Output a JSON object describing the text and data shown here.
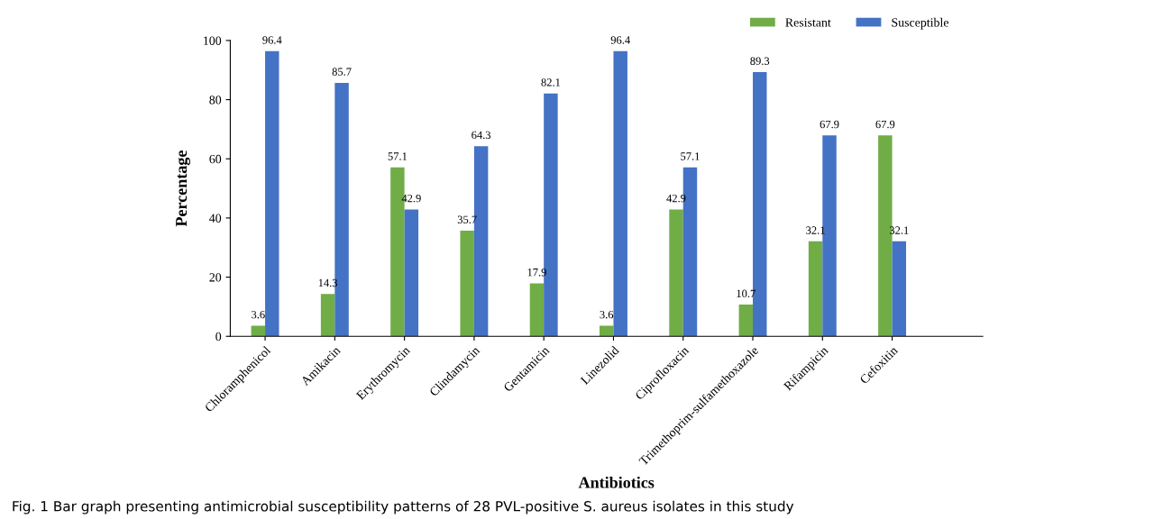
{
  "chart_data": {
    "type": "bar",
    "xlabel": "Antibiotics",
    "ylabel": "Percentage",
    "categories": [
      "Chloramphenicol",
      "Amikacin",
      "Erythromycin",
      "Clindamycin",
      "Gentamicin",
      "Linezolid",
      "Ciprofloxacin",
      "Trimethoprim-sulfamethoxazole",
      "Rifampicin",
      "Cefoxitin"
    ],
    "series": [
      {
        "name": "Resistant",
        "color": "#70ad47",
        "values": [
          3.6,
          14.3,
          57.1,
          35.7,
          17.9,
          3.6,
          42.9,
          10.7,
          32.1,
          67.9
        ]
      },
      {
        "name": "Susceptible",
        "color": "#4472c4",
        "values": [
          96.4,
          85.7,
          42.9,
          64.3,
          82.1,
          96.4,
          57.1,
          89.3,
          67.9,
          32.1
        ]
      }
    ],
    "ylim": [
      0,
      100
    ],
    "yticks": [
      0,
      20,
      40,
      60,
      80,
      100
    ],
    "data_labels": true,
    "legend": "top right",
    "grid": false,
    "annotations": [
      "Fig. 1 Bar graph presenting antimicrobial susceptibility patterns of 28 PVL-positive S. aureus isolates in this study"
    ]
  }
}
